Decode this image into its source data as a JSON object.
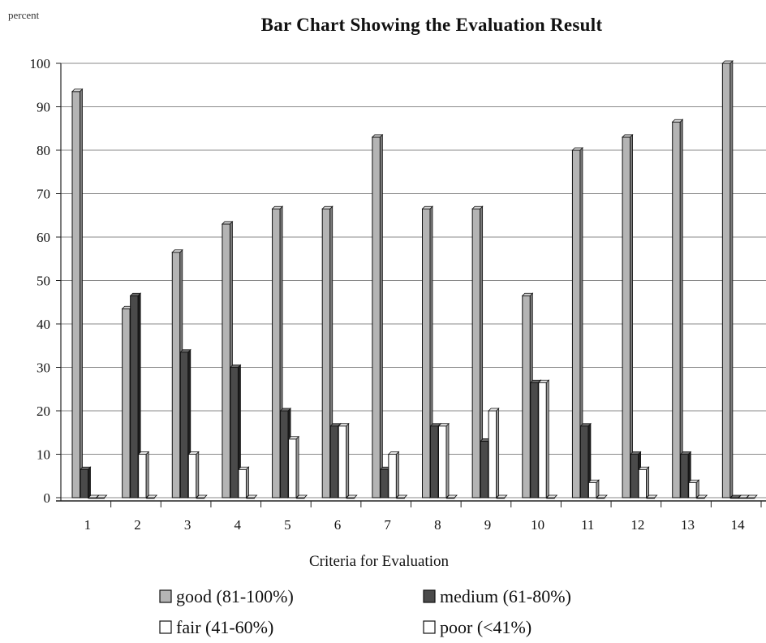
{
  "chart_data": {
    "type": "bar",
    "title": "Bar Chart  Showing the Evaluation Result",
    "ylabel": "percent",
    "xlabel": "Criteria for Evaluation",
    "categories": [
      "1",
      "2",
      "3",
      "4",
      "5",
      "6",
      "7",
      "8",
      "9",
      "10",
      "11",
      "12",
      "13",
      "14"
    ],
    "ylim": [
      0,
      100
    ],
    "yticks": [
      0,
      10,
      20,
      30,
      40,
      50,
      60,
      70,
      80,
      90,
      100
    ],
    "grid": true,
    "legend_position": "bottom",
    "series": [
      {
        "name": "good (81-100%)",
        "color": "#b4b4b4",
        "values": [
          93.5,
          43.5,
          56.5,
          63,
          66.5,
          66.5,
          83,
          66.5,
          66.5,
          46.5,
          80,
          83,
          86.5,
          100
        ]
      },
      {
        "name": "medium (61-80%)",
        "color": "#4a4a4a",
        "values": [
          6.5,
          46.5,
          33.5,
          30,
          20,
          16.5,
          6.5,
          16.5,
          13,
          26.5,
          16.5,
          10,
          10,
          0
        ]
      },
      {
        "name": "fair (41-60%)",
        "color": "#ffffff",
        "values": [
          0,
          10,
          10,
          6.5,
          13.5,
          16.5,
          10,
          16.5,
          20,
          26.5,
          3.5,
          6.5,
          3.5,
          0
        ]
      },
      {
        "name": "poor (<41%)",
        "color": "#ffffff",
        "values": [
          0,
          0,
          0,
          0,
          0,
          0,
          0,
          0,
          0,
          0,
          0,
          0,
          0,
          0
        ]
      }
    ]
  }
}
